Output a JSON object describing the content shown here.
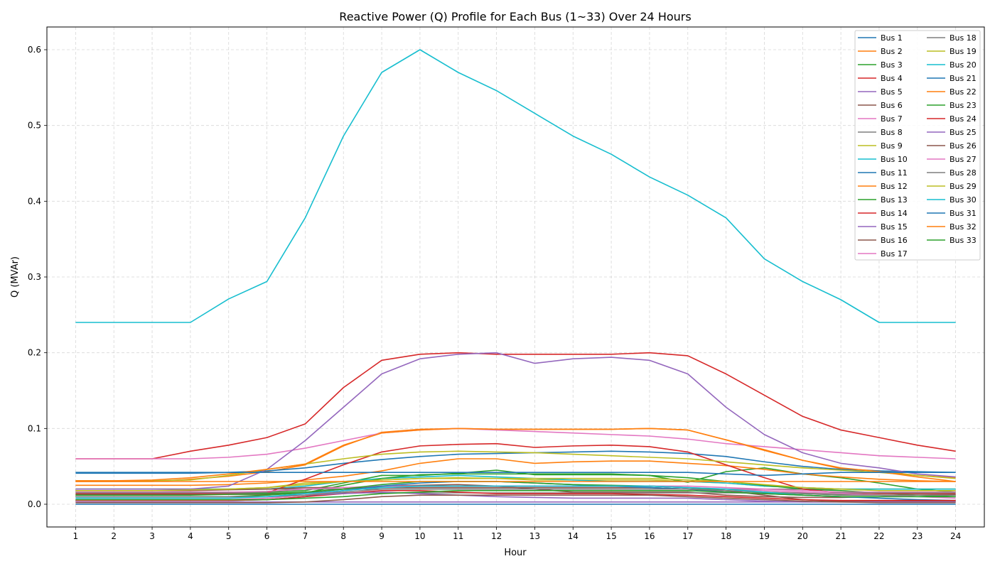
{
  "chart_data": {
    "type": "line",
    "title": "Reactive Power (Q) Profile for Each Bus (1~33) Over 24 Hours",
    "xlabel": "Hour",
    "ylabel": "Q (MVAr)",
    "xlim": [
      0.25,
      24.75
    ],
    "ylim": [
      -0.03,
      0.63
    ],
    "xticks": [
      1,
      2,
      3,
      4,
      5,
      6,
      7,
      8,
      9,
      10,
      11,
      12,
      13,
      14,
      15,
      16,
      17,
      18,
      19,
      20,
      21,
      22,
      23,
      24
    ],
    "yticks": [
      "0.0",
      "0.1",
      "0.2",
      "0.3",
      "0.4",
      "0.5",
      "0.6"
    ],
    "ytick_values": [
      0,
      0.1,
      0.2,
      0.3,
      0.4,
      0.5,
      0.6
    ],
    "grid": true,
    "legend_position": "top-right",
    "legend_columns": 2,
    "x": [
      1,
      2,
      3,
      4,
      5,
      6,
      7,
      8,
      9,
      10,
      11,
      12,
      13,
      14,
      15,
      16,
      17,
      18,
      19,
      20,
      21,
      22,
      23,
      24
    ],
    "series": [
      {
        "name": "Bus 1",
        "color": "#1f77b4",
        "values": [
          0,
          0,
          0,
          0,
          0,
          0,
          0,
          0,
          0,
          0,
          0,
          0,
          0,
          0,
          0,
          0,
          0,
          0,
          0,
          0,
          0,
          0,
          0,
          0
        ]
      },
      {
        "name": "Bus 2",
        "color": "#ff7f0e",
        "values": [
          0.03,
          0.03,
          0.03,
          0.033,
          0.037,
          0.043,
          0.052,
          0.077,
          0.095,
          0.099,
          0.1,
          0.099,
          0.099,
          0.099,
          0.099,
          0.1,
          0.098,
          0.085,
          0.071,
          0.058,
          0.047,
          0.044,
          0.038,
          0.035
        ]
      },
      {
        "name": "Bus 3",
        "color": "#2ca02c",
        "values": [
          0.016,
          0.016,
          0.016,
          0.016,
          0.016,
          0.016,
          0.018,
          0.028,
          0.038,
          0.038,
          0.041,
          0.045,
          0.039,
          0.039,
          0.039,
          0.038,
          0.029,
          0.043,
          0.048,
          0.04,
          0.035,
          0.028,
          0.02,
          0.016
        ]
      },
      {
        "name": "Bus 4",
        "color": "#d62728",
        "values": [
          0.06,
          0.06,
          0.06,
          0.07,
          0.078,
          0.088,
          0.106,
          0.154,
          0.19,
          0.198,
          0.2,
          0.198,
          0.198,
          0.198,
          0.198,
          0.2,
          0.196,
          0.172,
          0.144,
          0.116,
          0.098,
          0.088,
          0.078,
          0.07
        ]
      },
      {
        "name": "Bus 5",
        "color": "#9467bd",
        "values": [
          0.003,
          0.003,
          0.003,
          0.003,
          0.003,
          0.003,
          0.003,
          0.003,
          0.003,
          0.003,
          0.003,
          0.003,
          0.003,
          0.003,
          0.003,
          0.003,
          0.003,
          0.003,
          0.003,
          0.003,
          0.003,
          0.003,
          0.003,
          0.003
        ]
      },
      {
        "name": "Bus 6",
        "color": "#8c564b",
        "values": [
          0.013,
          0.013,
          0.013,
          0.013,
          0.013,
          0.013,
          0.015,
          0.02,
          0.024,
          0.025,
          0.026,
          0.024,
          0.02,
          0.016,
          0.016,
          0.016,
          0.016,
          0.012,
          0.01,
          0.009,
          0.009,
          0.01,
          0.012,
          0.013
        ]
      },
      {
        "name": "Bus 7",
        "color": "#e377c2",
        "values": [
          0.06,
          0.06,
          0.06,
          0.06,
          0.062,
          0.066,
          0.074,
          0.084,
          0.094,
          0.098,
          0.1,
          0.098,
          0.096,
          0.094,
          0.092,
          0.09,
          0.086,
          0.08,
          0.076,
          0.072,
          0.068,
          0.064,
          0.062,
          0.06
        ]
      },
      {
        "name": "Bus 8",
        "color": "#7f7f7f",
        "values": [
          0.02,
          0.02,
          0.02,
          0.02,
          0.02,
          0.02,
          0.02,
          0.02,
          0.02,
          0.02,
          0.02,
          0.02,
          0.02,
          0.02,
          0.02,
          0.02,
          0.02,
          0.02,
          0.02,
          0.02,
          0.02,
          0.02,
          0.02,
          0.02
        ]
      },
      {
        "name": "Bus 9",
        "color": "#bcbd22",
        "values": [
          0.02,
          0.02,
          0.02,
          0.02,
          0.02,
          0.022,
          0.028,
          0.03,
          0.032,
          0.034,
          0.035,
          0.034,
          0.032,
          0.032,
          0.032,
          0.032,
          0.03,
          0.028,
          0.024,
          0.022,
          0.02,
          0.02,
          0.02,
          0.02
        ]
      },
      {
        "name": "Bus 10",
        "color": "#17becf",
        "values": [
          0.02,
          0.02,
          0.02,
          0.02,
          0.02,
          0.02,
          0.024,
          0.03,
          0.034,
          0.036,
          0.038,
          0.036,
          0.034,
          0.032,
          0.03,
          0.03,
          0.03,
          0.028,
          0.024,
          0.022,
          0.02,
          0.02,
          0.02,
          0.02
        ]
      },
      {
        "name": "Bus 11",
        "color": "#1f77b4",
        "values": [
          0.041,
          0.041,
          0.041,
          0.041,
          0.042,
          0.044,
          0.048,
          0.054,
          0.059,
          0.063,
          0.066,
          0.067,
          0.068,
          0.069,
          0.07,
          0.069,
          0.067,
          0.063,
          0.056,
          0.05,
          0.046,
          0.044,
          0.043,
          0.042
        ]
      },
      {
        "name": "Bus 12",
        "color": "#ff7f0e",
        "values": [
          0.025,
          0.025,
          0.025,
          0.025,
          0.026,
          0.028,
          0.032,
          0.037,
          0.044,
          0.054,
          0.06,
          0.06,
          0.054,
          0.056,
          0.057,
          0.057,
          0.054,
          0.051,
          0.046,
          0.04,
          0.036,
          0.033,
          0.031,
          0.03
        ]
      },
      {
        "name": "Bus 13",
        "color": "#2ca02c",
        "values": [
          0.01,
          0.01,
          0.01,
          0.01,
          0.01,
          0.012,
          0.015,
          0.025,
          0.034,
          0.039,
          0.04,
          0.04,
          0.04,
          0.04,
          0.04,
          0.038,
          0.035,
          0.03,
          0.025,
          0.02,
          0.018,
          0.015,
          0.012,
          0.01
        ]
      },
      {
        "name": "Bus 14",
        "color": "#d62728",
        "values": [
          0.014,
          0.014,
          0.014,
          0.014,
          0.014,
          0.015,
          0.033,
          0.052,
          0.069,
          0.077,
          0.079,
          0.08,
          0.075,
          0.077,
          0.078,
          0.076,
          0.069,
          0.052,
          0.035,
          0.02,
          0.015,
          0.014,
          0.014,
          0.014
        ]
      },
      {
        "name": "Bus 15",
        "color": "#9467bd",
        "values": [
          0.02,
          0.02,
          0.02,
          0.02,
          0.024,
          0.046,
          0.084,
          0.128,
          0.172,
          0.192,
          0.198,
          0.2,
          0.186,
          0.192,
          0.194,
          0.19,
          0.172,
          0.128,
          0.092,
          0.068,
          0.054,
          0.048,
          0.04,
          0.036
        ]
      },
      {
        "name": "Bus 16",
        "color": "#8c564b",
        "values": [
          0.018,
          0.018,
          0.018,
          0.018,
          0.019,
          0.02,
          0.022,
          0.022,
          0.022,
          0.022,
          0.022,
          0.022,
          0.022,
          0.022,
          0.022,
          0.022,
          0.02,
          0.018,
          0.012,
          0.006,
          0.004,
          0.004,
          0.004,
          0.004
        ]
      },
      {
        "name": "Bus 17",
        "color": "#e377c2",
        "values": [
          0.016,
          0.016,
          0.016,
          0.016,
          0.016,
          0.017,
          0.02,
          0.022,
          0.024,
          0.024,
          0.024,
          0.024,
          0.024,
          0.024,
          0.024,
          0.024,
          0.024,
          0.022,
          0.02,
          0.018,
          0.016,
          0.016,
          0.016,
          0.016
        ]
      },
      {
        "name": "Bus 18",
        "color": "#7f7f7f",
        "values": [
          0.015,
          0.015,
          0.015,
          0.015,
          0.015,
          0.015,
          0.015,
          0.015,
          0.015,
          0.015,
          0.015,
          0.015,
          0.015,
          0.015,
          0.015,
          0.015,
          0.015,
          0.015,
          0.015,
          0.015,
          0.015,
          0.015,
          0.015,
          0.015
        ]
      },
      {
        "name": "Bus 19",
        "color": "#bcbd22",
        "values": [
          0.031,
          0.031,
          0.031,
          0.032,
          0.038,
          0.046,
          0.053,
          0.06,
          0.066,
          0.069,
          0.07,
          0.069,
          0.068,
          0.066,
          0.064,
          0.062,
          0.06,
          0.056,
          0.052,
          0.048,
          0.045,
          0.042,
          0.038,
          0.034
        ]
      },
      {
        "name": "Bus 20",
        "color": "#17becf",
        "values": [
          0.24,
          0.24,
          0.24,
          0.24,
          0.271,
          0.294,
          0.378,
          0.486,
          0.57,
          0.6,
          0.57,
          0.546,
          0.516,
          0.486,
          0.462,
          0.432,
          0.408,
          0.378,
          0.324,
          0.294,
          0.27,
          0.24,
          0.24,
          0.24
        ]
      },
      {
        "name": "Bus 21",
        "color": "#1f77b4",
        "values": [
          0.005,
          0.005,
          0.005,
          0.005,
          0.005,
          0.006,
          0.01,
          0.018,
          0.024,
          0.028,
          0.03,
          0.03,
          0.028,
          0.026,
          0.024,
          0.022,
          0.02,
          0.016,
          0.014,
          0.012,
          0.01,
          0.008,
          0.006,
          0.005
        ]
      },
      {
        "name": "Bus 22",
        "color": "#ff7f0e",
        "values": [
          0.031,
          0.031,
          0.032,
          0.035,
          0.04,
          0.046,
          0.053,
          0.078,
          0.094,
          0.098,
          0.1,
          0.099,
          0.099,
          0.099,
          0.099,
          0.1,
          0.098,
          0.085,
          0.072,
          0.058,
          0.048,
          0.043,
          0.036,
          0.03
        ]
      },
      {
        "name": "Bus 23",
        "color": "#2ca02c",
        "values": [
          0.012,
          0.012,
          0.012,
          0.012,
          0.013,
          0.014,
          0.016,
          0.02,
          0.026,
          0.03,
          0.03,
          0.03,
          0.028,
          0.026,
          0.025,
          0.024,
          0.022,
          0.018,
          0.016,
          0.014,
          0.013,
          0.012,
          0.012,
          0.012
        ]
      },
      {
        "name": "Bus 24",
        "color": "#d62728",
        "values": [
          0.005,
          0.005,
          0.005,
          0.005,
          0.005,
          0.006,
          0.01,
          0.014,
          0.018,
          0.018,
          0.016,
          0.014,
          0.014,
          0.014,
          0.014,
          0.013,
          0.012,
          0.01,
          0.008,
          0.006,
          0.005,
          0.005,
          0.005,
          0.005
        ]
      },
      {
        "name": "Bus 25",
        "color": "#9467bd",
        "values": [
          0.01,
          0.01,
          0.01,
          0.01,
          0.01,
          0.01,
          0.012,
          0.014,
          0.016,
          0.014,
          0.012,
          0.01,
          0.009,
          0.008,
          0.008,
          0.008,
          0.008,
          0.006,
          0.004,
          0.003,
          0.003,
          0.003,
          0.003,
          0.003
        ]
      },
      {
        "name": "Bus 26",
        "color": "#8c564b",
        "values": [
          0.002,
          0.002,
          0.002,
          0.002,
          0.002,
          0.002,
          0.003,
          0.006,
          0.01,
          0.012,
          0.012,
          0.012,
          0.012,
          0.012,
          0.012,
          0.012,
          0.01,
          0.008,
          0.006,
          0.004,
          0.003,
          0.002,
          0.002,
          0.002
        ]
      },
      {
        "name": "Bus 27",
        "color": "#e377c2",
        "values": [
          0.006,
          0.006,
          0.006,
          0.006,
          0.006,
          0.008,
          0.012,
          0.018,
          0.022,
          0.024,
          0.024,
          0.024,
          0.024,
          0.024,
          0.024,
          0.024,
          0.022,
          0.02,
          0.018,
          0.016,
          0.014,
          0.012,
          0.01,
          0.008
        ]
      },
      {
        "name": "Bus 28",
        "color": "#7f7f7f",
        "values": [
          0.01,
          0.01,
          0.01,
          0.01,
          0.01,
          0.01,
          0.012,
          0.016,
          0.02,
          0.02,
          0.02,
          0.02,
          0.02,
          0.02,
          0.02,
          0.02,
          0.02,
          0.018,
          0.016,
          0.014,
          0.012,
          0.012,
          0.012,
          0.012
        ]
      },
      {
        "name": "Bus 29",
        "color": "#bcbd22",
        "values": [
          0.018,
          0.018,
          0.018,
          0.019,
          0.02,
          0.022,
          0.026,
          0.03,
          0.032,
          0.034,
          0.034,
          0.034,
          0.034,
          0.034,
          0.034,
          0.034,
          0.032,
          0.03,
          0.026,
          0.022,
          0.02,
          0.018,
          0.018,
          0.018
        ]
      },
      {
        "name": "Bus 30",
        "color": "#17becf",
        "values": [
          0.008,
          0.008,
          0.008,
          0.008,
          0.008,
          0.01,
          0.014,
          0.018,
          0.022,
          0.024,
          0.024,
          0.024,
          0.024,
          0.024,
          0.024,
          0.024,
          0.022,
          0.02,
          0.016,
          0.012,
          0.01,
          0.01,
          0.01,
          0.01
        ]
      },
      {
        "name": "Bus 31",
        "color": "#1f77b4",
        "values": [
          0.042,
          0.042,
          0.042,
          0.042,
          0.042,
          0.042,
          0.042,
          0.042,
          0.042,
          0.042,
          0.042,
          0.042,
          0.042,
          0.042,
          0.042,
          0.042,
          0.042,
          0.04,
          0.038,
          0.04,
          0.042,
          0.042,
          0.042,
          0.042
        ]
      },
      {
        "name": "Bus 32",
        "color": "#ff7f0e",
        "values": [
          0.03,
          0.03,
          0.03,
          0.03,
          0.03,
          0.03,
          0.03,
          0.03,
          0.03,
          0.03,
          0.03,
          0.03,
          0.03,
          0.03,
          0.03,
          0.03,
          0.03,
          0.03,
          0.03,
          0.03,
          0.03,
          0.03,
          0.03,
          0.03
        ]
      },
      {
        "name": "Bus 33",
        "color": "#2ca02c",
        "values": [
          0.006,
          0.006,
          0.006,
          0.006,
          0.006,
          0.006,
          0.008,
          0.01,
          0.014,
          0.016,
          0.018,
          0.018,
          0.018,
          0.018,
          0.018,
          0.018,
          0.018,
          0.016,
          0.014,
          0.012,
          0.01,
          0.01,
          0.01,
          0.01
        ]
      }
    ]
  }
}
